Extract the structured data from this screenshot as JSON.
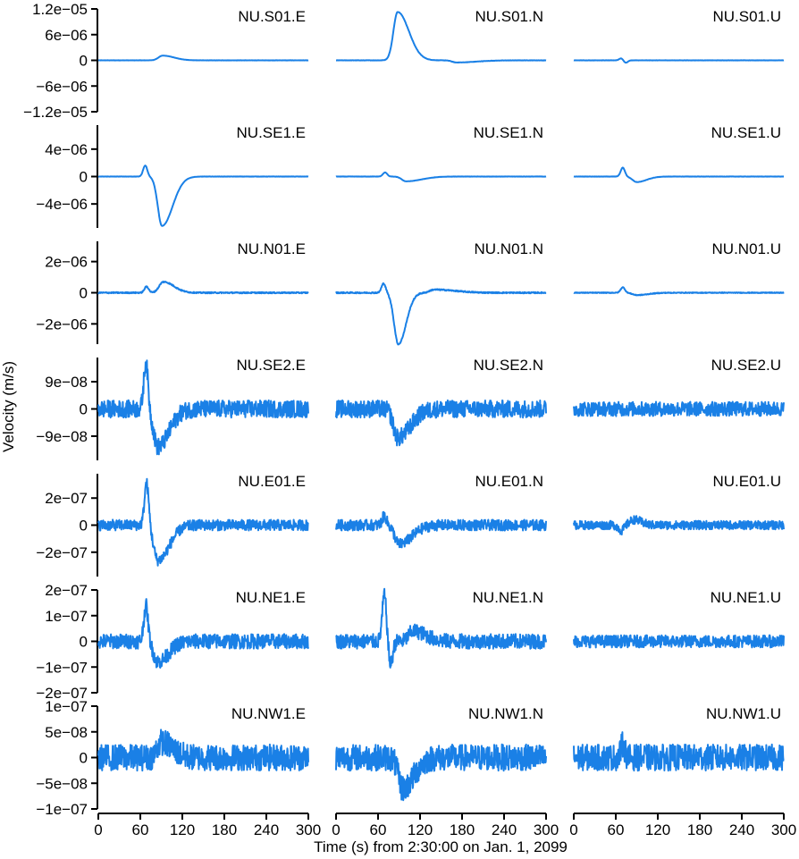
{
  "chart_data": {
    "type": "line",
    "xlabel": "Time (s) from 2:30:00 on Jan. 1, 2099",
    "ylabel": "Velocity (m/s)",
    "xlim": [
      0,
      300
    ],
    "x_ticks": [
      0,
      60,
      120,
      180,
      240,
      300
    ],
    "x_tick_labels": [
      "0",
      "60",
      "120",
      "180",
      "240",
      "300"
    ],
    "line_color": "#1a80e6",
    "grid": false,
    "components": [
      "E",
      "N",
      "U"
    ],
    "rows": [
      {
        "station": "NU.S01",
        "ylim": [
          -1.2e-05,
          1.2e-05
        ],
        "y_ticks": [
          -1.2e-05,
          -6e-06,
          0,
          6e-06,
          1.2e-05
        ],
        "y_tick_labels": [
          "−1.2e−05",
          "−6e−06",
          "0",
          "6e−06",
          "1.2e−05"
        ],
        "traces": [
          {
            "name": "NU.S01.E",
            "noise": 1e-08,
            "features": [
              {
                "c": 92,
                "w": 16,
                "a": 1.1e-06
              }
            ]
          },
          {
            "name": "NU.S01.N",
            "noise": 2e-08,
            "features": [
              {
                "c": 88,
                "w": 16,
                "a": 1.13e-05
              },
              {
                "c": 172,
                "w": 28,
                "a": -5e-07
              }
            ]
          },
          {
            "name": "NU.S01.U",
            "noise": 1e-08,
            "features": [
              {
                "c": 68,
                "w": 3,
                "a": 5e-07
              },
              {
                "c": 74,
                "w": 3,
                "a": -6e-07
              }
            ]
          }
        ]
      },
      {
        "station": "NU.SE1",
        "ylim": [
          -7.5e-06,
          7.5e-06
        ],
        "y_ticks": [
          -4e-06,
          0,
          4e-06
        ],
        "y_tick_labels": [
          "−4e−06",
          "0",
          "4e−06"
        ],
        "traces": [
          {
            "name": "NU.SE1.E",
            "noise": 1e-08,
            "features": [
              {
                "c": 67,
                "w": 3,
                "a": 1.6e-06
              },
              {
                "c": 91,
                "w": 15,
                "a": -7.2e-06
              }
            ]
          },
          {
            "name": "NU.SE1.N",
            "noise": 1e-08,
            "features": [
              {
                "c": 70,
                "w": 3,
                "a": 6e-07
              },
              {
                "c": 100,
                "w": 22,
                "a": -7e-07
              }
            ]
          },
          {
            "name": "NU.SE1.U",
            "noise": 1e-08,
            "features": [
              {
                "c": 70,
                "w": 3,
                "a": 1.3e-06
              },
              {
                "c": 90,
                "w": 14,
                "a": -8e-07
              }
            ]
          }
        ]
      },
      {
        "station": "NU.N01",
        "ylim": [
          -3.3e-06,
          3.3e-06
        ],
        "y_ticks": [
          -2e-06,
          0,
          2e-06
        ],
        "y_tick_labels": [
          "−2e−06",
          "0",
          "2e−06"
        ],
        "traces": [
          {
            "name": "NU.N01.E",
            "noise": 2.5e-08,
            "features": [
              {
                "c": 69,
                "w": 3,
                "a": 4e-07
              },
              {
                "c": 93,
                "w": 15,
                "a": 7e-07
              }
            ]
          },
          {
            "name": "NU.N01.N",
            "noise": 2.5e-08,
            "features": [
              {
                "c": 68,
                "w": 3,
                "a": 6e-07
              },
              {
                "c": 89,
                "w": 11,
                "a": -3.3e-06
              },
              {
                "c": 140,
                "w": 30,
                "a": 2e-07
              }
            ]
          },
          {
            "name": "NU.N01.U",
            "noise": 1.5e-08,
            "features": [
              {
                "c": 70,
                "w": 3,
                "a": 3.5e-07
              },
              {
                "c": 90,
                "w": 16,
                "a": -1.5e-07
              }
            ]
          }
        ]
      },
      {
        "station": "NU.SE2",
        "ylim": [
          -1.7e-07,
          1.7e-07
        ],
        "y_ticks": [
          -9e-08,
          0,
          9e-08
        ],
        "y_tick_labels": [
          "−9e−08",
          "0",
          "9e−08"
        ],
        "traces": [
          {
            "name": "NU.SE2.E",
            "noise": 1.8e-08,
            "features": [
              {
                "c": 68,
                "w": 3,
                "a": 1.55e-07
              },
              {
                "c": 85,
                "w": 16,
                "a": -1.25e-07
              }
            ]
          },
          {
            "name": "NU.SE2.N",
            "noise": 1.8e-08,
            "features": [
              {
                "c": 88,
                "w": 18,
                "a": -9.5e-08
              }
            ]
          },
          {
            "name": "NU.SE2.U",
            "noise": 1.5e-08,
            "features": []
          }
        ]
      },
      {
        "station": "NU.E01",
        "ylim": [
          -3.8e-07,
          3.8e-07
        ],
        "y_ticks": [
          -2e-07,
          0,
          2e-07
        ],
        "y_tick_labels": [
          "−2e−07",
          "0",
          "2e−07"
        ],
        "traces": [
          {
            "name": "NU.E01.E",
            "noise": 2.5e-08,
            "features": [
              {
                "c": 69,
                "w": 3,
                "a": 3.2e-07
              },
              {
                "c": 85,
                "w": 16,
                "a": -2.6e-07
              }
            ]
          },
          {
            "name": "NU.E01.N",
            "noise": 2.5e-08,
            "features": [
              {
                "c": 69,
                "w": 3,
                "a": 7e-08
              },
              {
                "c": 90,
                "w": 18,
                "a": -1.4e-07
              }
            ]
          },
          {
            "name": "NU.E01.U",
            "noise": 2e-08,
            "features": [
              {
                "c": 68,
                "w": 4,
                "a": -4e-08
              },
              {
                "c": 86,
                "w": 10,
                "a": 4e-08
              }
            ]
          }
        ]
      },
      {
        "station": "NU.NE1",
        "ylim": [
          -2e-07,
          2e-07
        ],
        "y_ticks": [
          -2e-07,
          -1e-07,
          0,
          1e-07,
          2e-07
        ],
        "y_tick_labels": [
          "−2e−07",
          "−1e−07",
          "0",
          "1e−07",
          "2e−07"
        ],
        "traces": [
          {
            "name": "NU.NE1.E",
            "noise": 1.8e-08,
            "features": [
              {
                "c": 68,
                "w": 3,
                "a": 1.4e-07
              },
              {
                "c": 85,
                "w": 15,
                "a": -8e-08
              }
            ]
          },
          {
            "name": "NU.NE1.N",
            "noise": 1.8e-08,
            "features": [
              {
                "c": 69,
                "w": 3,
                "a": 1.8e-07
              },
              {
                "c": 78,
                "w": 3,
                "a": -9e-08
              },
              {
                "c": 110,
                "w": 18,
                "a": 4e-08
              }
            ]
          },
          {
            "name": "NU.NE1.U",
            "noise": 1.5e-08,
            "features": []
          }
        ]
      },
      {
        "station": "NU.NW1",
        "ylim": [
          -1e-07,
          1e-07
        ],
        "y_ticks": [
          -1e-07,
          -5e-08,
          0,
          5e-08,
          1e-07
        ],
        "y_tick_labels": [
          "−1e−07",
          "−5e−08",
          "0",
          "5e−08",
          "1e−07"
        ],
        "traces": [
          {
            "name": "NU.NW1.E",
            "noise": 1.6e-08,
            "features": [
              {
                "c": 90,
                "w": 16,
                "a": 3e-08
              }
            ]
          },
          {
            "name": "NU.NW1.N",
            "noise": 1.6e-08,
            "features": [
              {
                "c": 95,
                "w": 16,
                "a": -6e-08
              }
            ]
          },
          {
            "name": "NU.NW1.U",
            "noise": 1.6e-08,
            "features": [
              {
                "c": 70,
                "w": 3,
                "a": 2.5e-08
              }
            ]
          }
        ]
      }
    ]
  }
}
